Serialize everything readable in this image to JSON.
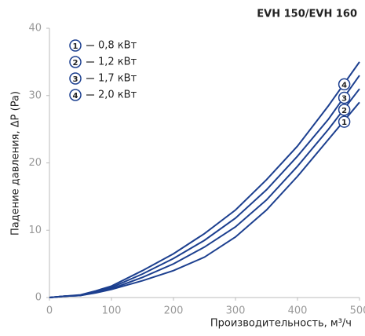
{
  "chart_data": {
    "type": "line",
    "title": "EVH 150/EVH 160",
    "xlabel": "Производительность, м³/ч",
    "ylabel": "Падение давления, ΔP (Pa)",
    "x": [
      0,
      25,
      50,
      75,
      100,
      150,
      200,
      250,
      300,
      350,
      400,
      450,
      500
    ],
    "series": [
      {
        "name": "0,8 кВт",
        "label": "1",
        "color": "#1c3f8f",
        "values": [
          0,
          0.2,
          0.3,
          0.7,
          1.2,
          2.5,
          4,
          6,
          9,
          13,
          18,
          23.5,
          29
        ]
      },
      {
        "name": "1,2 кВт",
        "label": "2",
        "color": "#1c3f8f",
        "values": [
          0,
          0.2,
          0.3,
          0.8,
          1.3,
          3,
          5,
          7.5,
          10.5,
          14.5,
          19.5,
          25,
          31
        ]
      },
      {
        "name": "1,7 кВт",
        "label": "3",
        "color": "#1c3f8f",
        "values": [
          0,
          0.2,
          0.3,
          0.9,
          1.5,
          3.5,
          5.8,
          8.5,
          11.8,
          16,
          21,
          26.5,
          33
        ]
      },
      {
        "name": "2,0 кВт",
        "label": "4",
        "color": "#1c3f8f",
        "values": [
          0,
          0.2,
          0.4,
          1,
          1.7,
          4,
          6.5,
          9.5,
          13,
          17.5,
          22.5,
          28.5,
          35
        ]
      }
    ],
    "xlim": [
      0,
      500
    ],
    "ylim": [
      0,
      40
    ],
    "xticks": [
      0,
      100,
      200,
      300,
      400,
      500
    ],
    "yticks": [
      0,
      10,
      20,
      30,
      40
    ],
    "grid": false
  }
}
